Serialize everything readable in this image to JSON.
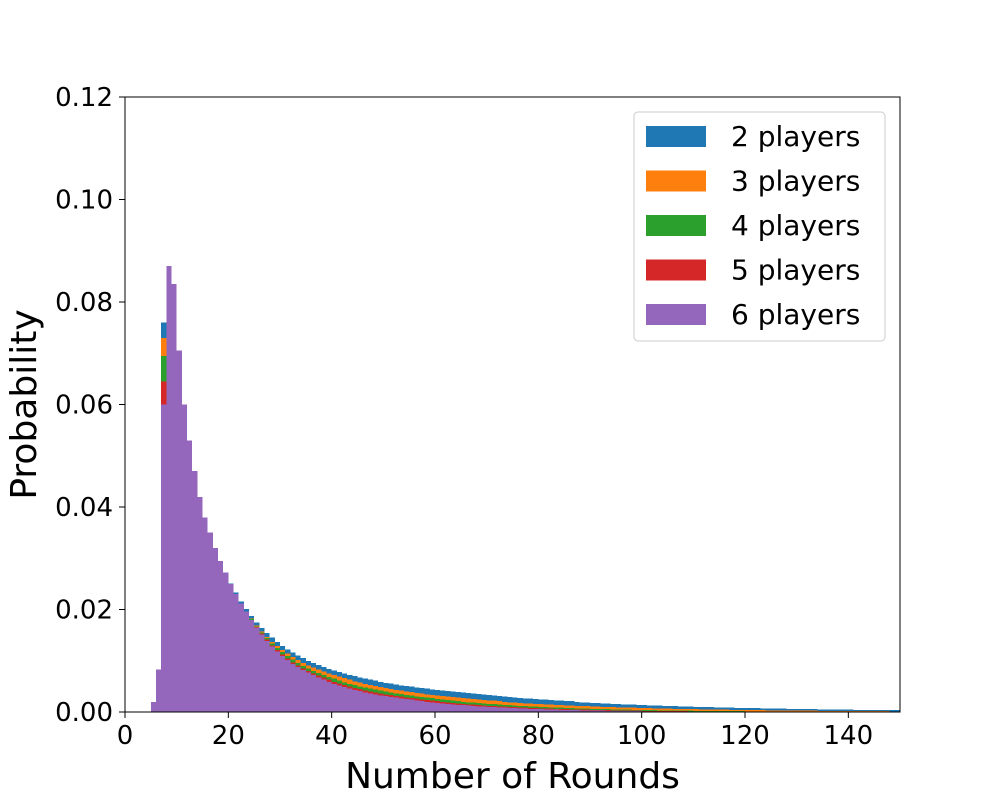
{
  "chart_data": {
    "type": "bar",
    "subtype": "overlaid-histogram",
    "title": "",
    "xlabel": "Number of Rounds",
    "ylabel": "Probability",
    "xlim": [
      0,
      150
    ],
    "ylim": [
      0,
      0.12
    ],
    "xticks": [
      0,
      20,
      40,
      60,
      80,
      100,
      120,
      140
    ],
    "xtick_labels": [
      "0",
      "20",
      "40",
      "60",
      "80",
      "100",
      "120",
      "140"
    ],
    "yticks": [
      0.0,
      0.02,
      0.04,
      0.06,
      0.08,
      0.1,
      0.12
    ],
    "ytick_labels": [
      "0.00",
      "0.02",
      "0.04",
      "0.06",
      "0.08",
      "0.10",
      "0.12"
    ],
    "grid": false,
    "legend_position": "top-right",
    "bin_start": 5,
    "bin_width": 1,
    "series": [
      {
        "name": "2 players",
        "color": "#1f77b4",
        "values": [
          0.002,
          0.0083,
          0.076,
          0.087,
          0.0835,
          0.0705,
          0.06,
          0.053,
          0.047,
          0.042,
          0.038,
          0.035,
          0.032,
          0.0295,
          0.0272,
          0.0251,
          0.0233,
          0.0216,
          0.0201,
          0.0187,
          0.0175,
          0.0164,
          0.0154,
          0.0145,
          0.0137,
          0.0129,
          0.0122,
          0.0116,
          0.011,
          0.0105,
          0.01,
          0.0096,
          0.0092,
          0.0088,
          0.0084,
          0.0081,
          0.0078,
          0.0075,
          0.0072,
          0.007,
          0.0067,
          0.0065,
          0.0063,
          0.0061,
          0.0059,
          0.0057,
          0.0056,
          0.0054,
          0.0052,
          0.0051,
          0.005,
          0.0048,
          0.0047,
          0.0046,
          0.0044,
          0.0043,
          0.0042,
          0.0041,
          0.004,
          0.0039,
          0.0038,
          0.0037,
          0.0036,
          0.0035,
          0.0034,
          0.0033,
          0.0032,
          0.0031,
          0.003,
          0.0029,
          0.0028,
          0.0027,
          0.0026,
          0.0026,
          0.0025,
          0.0024,
          0.0024,
          0.0023,
          0.0022,
          0.0022,
          0.0021,
          0.0021,
          0.002,
          0.0019,
          0.0019,
          0.0018,
          0.0018,
          0.0017,
          0.0017,
          0.0016,
          0.0016,
          0.0015,
          0.0015,
          0.0015,
          0.0014,
          0.0014,
          0.0013,
          0.0013,
          0.0013,
          0.0012,
          0.0012,
          0.0012,
          0.0011,
          0.0011,
          0.0011,
          0.001,
          0.001,
          0.001,
          0.001,
          0.0009,
          0.0009,
          0.0009,
          0.0009,
          0.0008,
          0.0008,
          0.0008,
          0.0008,
          0.0008,
          0.0007,
          0.0007,
          0.0007,
          0.0007,
          0.0007,
          0.0006,
          0.0006,
          0.0006,
          0.0006,
          0.0006,
          0.0006,
          0.0005,
          0.0005,
          0.0005,
          0.0005,
          0.0005,
          0.0005,
          0.0005,
          0.0004,
          0.0004,
          0.0004,
          0.0004,
          0.0004,
          0.0004,
          0.0004,
          0.0004,
          0.0004,
          0.0003
        ]
      },
      {
        "name": "3 players",
        "color": "#ff7f0e",
        "values": [
          0.002,
          0.0083,
          0.073,
          0.087,
          0.0835,
          0.0705,
          0.06,
          0.053,
          0.047,
          0.042,
          0.038,
          0.035,
          0.032,
          0.0295,
          0.0272,
          0.025,
          0.023,
          0.0212,
          0.0196,
          0.0182,
          0.0169,
          0.0157,
          0.0146,
          0.0137,
          0.0129,
          0.0121,
          0.0114,
          0.0107,
          0.0101,
          0.0096,
          0.0091,
          0.0087,
          0.0083,
          0.0079,
          0.0075,
          0.0072,
          0.0069,
          0.0066,
          0.0063,
          0.006,
          0.0058,
          0.0055,
          0.0053,
          0.0051,
          0.0049,
          0.0047,
          0.0045,
          0.0043,
          0.0042,
          0.004,
          0.0039,
          0.0037,
          0.0036,
          0.0034,
          0.0033,
          0.0032,
          0.0031,
          0.003,
          0.0029,
          0.0028,
          0.0027,
          0.0026,
          0.0025,
          0.0024,
          0.0023,
          0.0022,
          0.0022,
          0.0021,
          0.002,
          0.0019,
          0.0019,
          0.0018,
          0.0017,
          0.0017,
          0.0016,
          0.0016,
          0.0015,
          0.0015,
          0.0014,
          0.0014,
          0.0013,
          0.0013,
          0.0012,
          0.0012,
          0.0012,
          0.0011,
          0.0011,
          0.001,
          0.001,
          0.001,
          0.0009,
          0.0009,
          0.0009,
          0.0009,
          0.0008,
          0.0008,
          0.0008,
          0.0007,
          0.0007,
          0.0007,
          0.0007,
          0.0006,
          0.0006,
          0.0006,
          0.0006,
          0.0006,
          0.0005,
          0.0005,
          0.0005,
          0.0005,
          0.0005,
          0.0005,
          0.0004,
          0.0004,
          0.0004,
          0.0004,
          0.0004,
          0.0004,
          0.0004,
          0.0003,
          0.0003,
          0.0003,
          0.0003,
          0.0003,
          0.0003,
          0.0003,
          0.0003,
          0.0003,
          0.0003,
          0.0002,
          0.0002,
          0.0002,
          0.0002,
          0.0002,
          0.0002,
          0.0002,
          0.0002,
          0.0002,
          0.0002,
          0.0002,
          0.0002,
          0.0002,
          0.0002,
          0.0001,
          0.0001
        ]
      },
      {
        "name": "4 players",
        "color": "#2ca02c",
        "values": [
          0.002,
          0.0083,
          0.0695,
          0.087,
          0.0835,
          0.0705,
          0.06,
          0.053,
          0.047,
          0.042,
          0.038,
          0.035,
          0.032,
          0.0295,
          0.0272,
          0.025,
          0.023,
          0.0212,
          0.0196,
          0.0181,
          0.0167,
          0.0155,
          0.0144,
          0.0134,
          0.0125,
          0.0117,
          0.0109,
          0.0102,
          0.0096,
          0.009,
          0.0085,
          0.008,
          0.0076,
          0.0072,
          0.0068,
          0.0065,
          0.0061,
          0.0058,
          0.0055,
          0.0053,
          0.005,
          0.0048,
          0.0046,
          0.0044,
          0.0042,
          0.004,
          0.0038,
          0.0036,
          0.0035,
          0.0033,
          0.0032,
          0.003,
          0.0029,
          0.0028,
          0.0027,
          0.0025,
          0.0024,
          0.0023,
          0.0022,
          0.0021,
          0.002,
          0.0019,
          0.0019,
          0.0018,
          0.0017,
          0.0016,
          0.0016,
          0.0015,
          0.0014,
          0.0014,
          0.0013,
          0.0012,
          0.0012,
          0.0011,
          0.0011,
          0.001,
          0.001,
          0.0009,
          0.0009,
          0.0009,
          0.0008,
          0.0008,
          0.0007,
          0.0007,
          0.0007,
          0.0006,
          0.0006,
          0.0006,
          0.0006,
          0.0005,
          0.0005,
          0.0005,
          0.0005,
          0.0004,
          0.0004,
          0.0004,
          0.0004,
          0.0004,
          0.0003,
          0.0003,
          0.0003,
          0.0003,
          0.0003,
          0.0003,
          0.0003,
          0.0002,
          0.0002,
          0.0002,
          0.0002,
          0.0002,
          0.0002,
          0.0002,
          0.0002,
          0.0002,
          0.0002,
          0.0001,
          0.0001,
          0.0001,
          0.0001,
          0.0001,
          0.0001,
          0.0001,
          0.0001,
          0.0001,
          0.0001,
          0.0001,
          0.0001,
          0.0001,
          0.0001,
          0.0001,
          0.0001,
          0.0001,
          0.0001,
          0.0001,
          0.0001,
          0.0001,
          0.0001,
          0.0001,
          0.0001,
          0.0001,
          0.0001,
          0.0001,
          0.0001,
          0.0001,
          0.0001
        ]
      },
      {
        "name": "5 players",
        "color": "#d62728",
        "values": [
          0.002,
          0.0083,
          0.0645,
          0.087,
          0.0835,
          0.0705,
          0.06,
          0.053,
          0.047,
          0.042,
          0.038,
          0.035,
          0.032,
          0.0295,
          0.0272,
          0.025,
          0.023,
          0.0212,
          0.0196,
          0.018,
          0.0166,
          0.0153,
          0.0141,
          0.013,
          0.0121,
          0.0112,
          0.0104,
          0.0097,
          0.0091,
          0.0085,
          0.008,
          0.0075,
          0.0071,
          0.0067,
          0.0063,
          0.0059,
          0.0056,
          0.0053,
          0.005,
          0.0047,
          0.0045,
          0.0042,
          0.004,
          0.0038,
          0.0036,
          0.0034,
          0.0033,
          0.0031,
          0.003,
          0.0028,
          0.0027,
          0.0026,
          0.0024,
          0.0023,
          0.0022,
          0.0021,
          0.002,
          0.0019,
          0.0018,
          0.0017,
          0.0016,
          0.0015,
          0.0015,
          0.0014,
          0.0013,
          0.0012,
          0.0012,
          0.0011,
          0.0011,
          0.001,
          0.001,
          0.0009,
          0.0009,
          0.0008,
          0.0008,
          0.0007,
          0.0007,
          0.0007,
          0.0006,
          0.0006,
          0.0006,
          0.0005,
          0.0005,
          0.0005,
          0.0005,
          0.0004,
          0.0004,
          0.0004,
          0.0004,
          0.0003,
          0.0003,
          0.0003,
          0.0003,
          0.0003,
          0.0003,
          0.0002,
          0.0002,
          0.0002,
          0.0002,
          0.0002,
          0.0002,
          0.0002,
          0.0002,
          0.0002,
          0.0001,
          0.0001,
          0.0001,
          0.0001,
          0.0001,
          0.0001,
          0.0001,
          0.0001,
          0.0001,
          0.0001,
          0.0001,
          0.0001,
          0.0001,
          0.0001,
          0.0001,
          0.0001,
          0.0001,
          0.0001,
          0.0001,
          0.0001,
          0.0001,
          0.0001,
          0.0001,
          0.0001,
          0.0001,
          0.0001,
          0.0001,
          0.0001,
          0.0001,
          0.0001,
          0.0001,
          0.0001,
          0.0001,
          0.0001,
          0.0001,
          0.0001,
          0.0001,
          0.0001,
          0.0001,
          0.0001,
          0.0001
        ]
      },
      {
        "name": "6 players",
        "color": "#9467bd",
        "values": [
          0.002,
          0.0083,
          0.06,
          0.087,
          0.0835,
          0.0705,
          0.06,
          0.053,
          0.047,
          0.042,
          0.038,
          0.035,
          0.032,
          0.0295,
          0.0272,
          0.025,
          0.023,
          0.0212,
          0.0196,
          0.018,
          0.0165,
          0.0151,
          0.0139,
          0.0128,
          0.0118,
          0.0109,
          0.0101,
          0.0094,
          0.0088,
          0.0082,
          0.0077,
          0.0072,
          0.0067,
          0.0063,
          0.0059,
          0.0055,
          0.0052,
          0.0049,
          0.0046,
          0.0043,
          0.0041,
          0.0038,
          0.0036,
          0.0034,
          0.0032,
          0.0031,
          0.0029,
          0.0028,
          0.0026,
          0.0025,
          0.0024,
          0.0022,
          0.0021,
          0.002,
          0.0019,
          0.0018,
          0.0017,
          0.0016,
          0.0015,
          0.0014,
          0.0014,
          0.0013,
          0.0012,
          0.0011,
          0.0011,
          0.001,
          0.001,
          0.0009,
          0.0009,
          0.0008,
          0.0008,
          0.0007,
          0.0007,
          0.0006,
          0.0006,
          0.0006,
          0.0005,
          0.0005,
          0.0005,
          0.0004,
          0.0004,
          0.0004,
          0.0004,
          0.0003,
          0.0003,
          0.0003,
          0.0003,
          0.0003,
          0.0002,
          0.0002,
          0.0002,
          0.0002,
          0.0002,
          0.0002,
          0.0002,
          0.0001,
          0.0001,
          0.0001,
          0.0001,
          0.0001,
          0.0001,
          0.0001,
          0.0001,
          0.0001,
          0.0001,
          0.0001,
          0.0001,
          0.0001,
          0.0001,
          0.0001,
          0.0001,
          0.0001,
          0.0001,
          0.0001,
          0.0001,
          0.0001,
          0.0001,
          0.0001,
          0.0001,
          0.0001,
          0.0001,
          0.0001,
          0.0001,
          0.0001,
          0.0001,
          0.0001,
          0.0001,
          0.0001,
          0.0001,
          0.0001,
          0.0001,
          0.0001,
          0.0001,
          0.0001,
          0.0001,
          0.0001,
          0.0001,
          0.0001,
          0.0001,
          0.0001,
          0.0001,
          0.0001,
          0.0001,
          0.0001,
          0.0001
        ]
      }
    ]
  }
}
